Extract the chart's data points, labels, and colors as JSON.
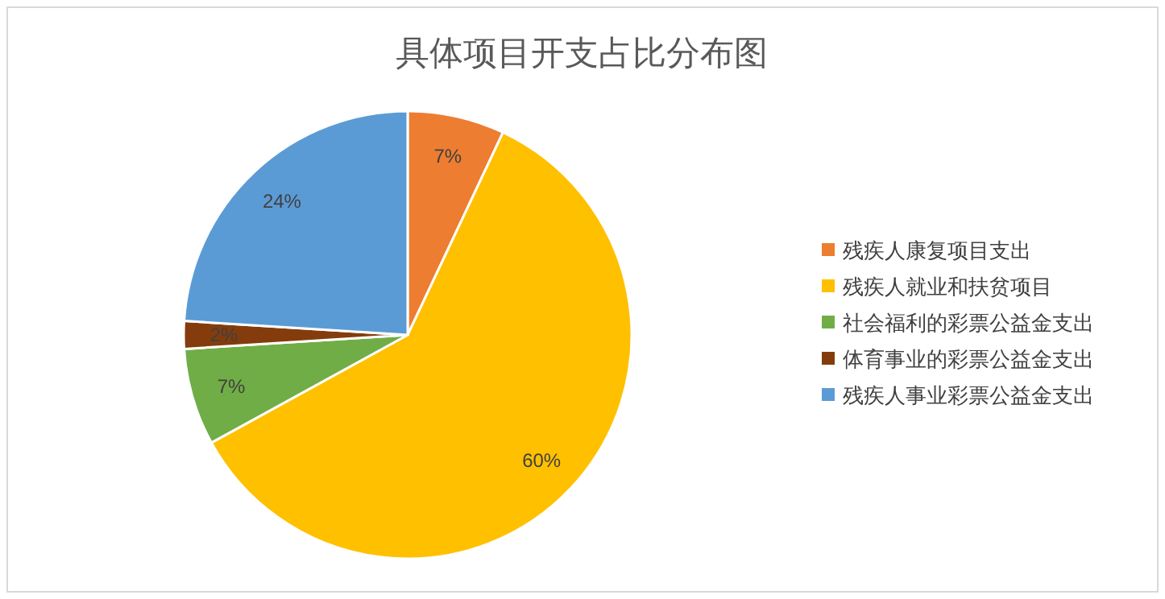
{
  "chart_data": {
    "type": "pie",
    "title": "具体项目开支占比分布图",
    "categories": [
      "残疾人康复项目支出",
      "残疾人就业和扶贫项目",
      "社会福利的彩票公益金支出",
      "体育事业的彩票公益金支出",
      "残疾人事业彩票公益金支出"
    ],
    "values": [
      7,
      60,
      7,
      2,
      24
    ],
    "colors": [
      "#ed7d31",
      "#ffc000",
      "#70ad47",
      "#843c0c",
      "#5b9bd5"
    ],
    "value_labels": [
      "7%",
      "60%",
      "7%",
      "2%",
      "24%"
    ],
    "legend": "right"
  }
}
